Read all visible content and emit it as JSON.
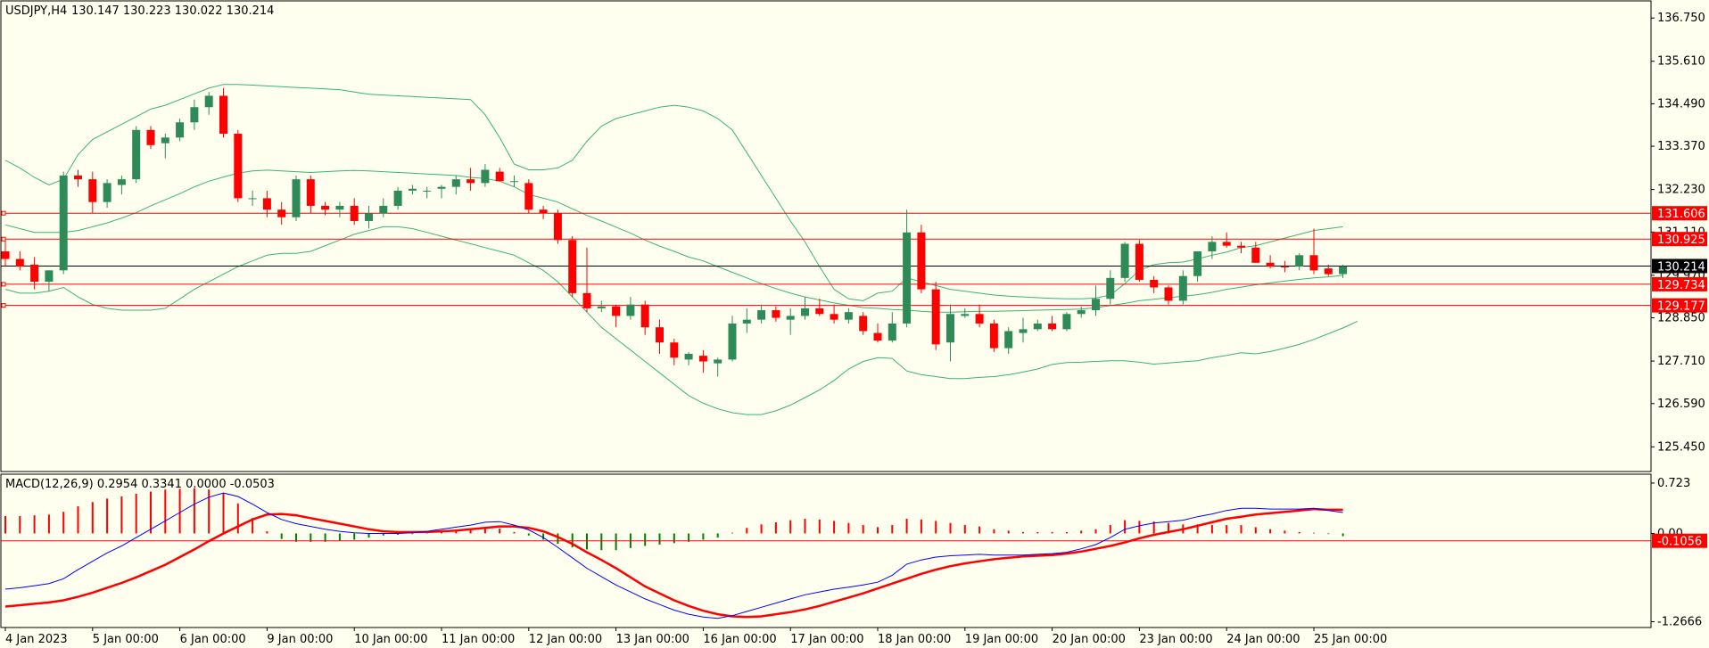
{
  "header": {
    "symbol_tf": "USDJPY,H4",
    "ohlc": "130.147 130.223 130.022 130.214"
  },
  "macd_label": "MACD(12,26,9) 0.2954 0.3341 0.0000 -0.0503",
  "colors": {
    "background": "#fffff0",
    "bull": "#2e8b57",
    "bear": "#ff0000",
    "bands": "#3cb371",
    "level_line": "#ff0000",
    "current_line": "#000000",
    "macd_line": "#0000ff",
    "signal_line": "#ff0000",
    "hist_pos": "#ff0000",
    "hist_neg": "#008000"
  },
  "chart_data": [
    {
      "type": "candlestick",
      "title": "USDJPY,H4",
      "ylim": [
        124.8,
        137.2
      ],
      "yticks": [
        136.75,
        135.61,
        134.49,
        133.37,
        132.23,
        131.11,
        129.97,
        128.85,
        127.71,
        126.59,
        125.45
      ],
      "ytick_labels": [
        "136.750",
        "135.610",
        "134.490",
        "133.370",
        "132.230",
        "131.110",
        "129.970",
        "128.850",
        "127.710",
        "126.590",
        "125.450"
      ],
      "xticks": [
        {
          "i": 0,
          "label": "4 Jan 2023"
        },
        {
          "i": 6,
          "label": "5 Jan 00:00"
        },
        {
          "i": 12,
          "label": "6 Jan 00:00"
        },
        {
          "i": 18,
          "label": "9 Jan 00:00"
        },
        {
          "i": 24,
          "label": "10 Jan 00:00"
        },
        {
          "i": 30,
          "label": "11 Jan 00:00"
        },
        {
          "i": 36,
          "label": "12 Jan 00:00"
        },
        {
          "i": 42,
          "label": "13 Jan 00:00"
        },
        {
          "i": 48,
          "label": "16 Jan 00:00"
        },
        {
          "i": 54,
          "label": "17 Jan 00:00"
        },
        {
          "i": 60,
          "label": "18 Jan 00:00"
        },
        {
          "i": 66,
          "label": "19 Jan 00:00"
        },
        {
          "i": 72,
          "label": "20 Jan 00:00"
        },
        {
          "i": 78,
          "label": "23 Jan 00:00"
        },
        {
          "i": 84,
          "label": "24 Jan 00:00"
        },
        {
          "i": 90,
          "label": "25 Jan 00:00"
        }
      ],
      "levels": [
        131.606,
        130.925,
        129.734,
        129.177
      ],
      "level_labels": [
        "131.606",
        "130.925",
        "129.734",
        "129.177"
      ],
      "current_price": 130.214,
      "current_price_label": "130.214",
      "candles": [
        [
          130.6,
          130.9,
          130.2,
          130.4
        ],
        [
          130.4,
          130.6,
          130.1,
          130.2
        ],
        [
          130.25,
          130.45,
          129.6,
          129.8
        ],
        [
          129.8,
          130.1,
          129.55,
          130.1
        ],
        [
          130.1,
          132.7,
          130.0,
          132.6
        ],
        [
          132.6,
          132.75,
          132.3,
          132.5
        ],
        [
          132.5,
          132.7,
          131.6,
          131.9
        ],
        [
          131.9,
          132.5,
          131.75,
          132.4
        ],
        [
          132.35,
          132.6,
          132.1,
          132.5
        ],
        [
          132.5,
          133.9,
          132.4,
          133.8
        ],
        [
          133.8,
          133.9,
          133.3,
          133.4
        ],
        [
          133.45,
          133.7,
          133.05,
          133.6
        ],
        [
          133.6,
          134.1,
          133.5,
          134.0
        ],
        [
          134.0,
          134.6,
          133.8,
          134.4
        ],
        [
          134.4,
          134.8,
          134.2,
          134.7
        ],
        [
          134.7,
          134.9,
          133.6,
          133.7
        ],
        [
          133.7,
          133.8,
          131.9,
          132.0
        ],
        [
          132.0,
          132.2,
          131.8,
          132.0
        ],
        [
          132.0,
          132.2,
          131.5,
          131.7
        ],
        [
          131.7,
          131.9,
          131.3,
          131.5
        ],
        [
          131.5,
          132.6,
          131.4,
          132.5
        ],
        [
          132.5,
          132.6,
          131.6,
          131.8
        ],
        [
          131.8,
          131.9,
          131.55,
          131.7
        ],
        [
          131.7,
          131.9,
          131.5,
          131.8
        ],
        [
          131.8,
          132.0,
          131.3,
          131.4
        ],
        [
          131.4,
          131.8,
          131.2,
          131.6
        ],
        [
          131.6,
          132.0,
          131.5,
          131.8
        ],
        [
          131.8,
          132.3,
          131.7,
          132.2
        ],
        [
          132.2,
          132.35,
          132.1,
          132.25
        ],
        [
          132.2,
          132.3,
          132.0,
          132.2
        ],
        [
          132.25,
          132.35,
          132.0,
          132.3
        ],
        [
          132.3,
          132.6,
          132.1,
          132.5
        ],
        [
          132.5,
          132.8,
          132.2,
          132.4
        ],
        [
          132.4,
          132.9,
          132.3,
          132.75
        ],
        [
          132.7,
          132.8,
          132.5,
          132.45
        ],
        [
          132.45,
          132.6,
          132.3,
          132.45
        ],
        [
          132.4,
          132.5,
          131.6,
          131.7
        ],
        [
          131.7,
          131.8,
          131.45,
          131.6
        ],
        [
          131.6,
          131.7,
          130.8,
          130.9
        ],
        [
          130.9,
          131.0,
          129.4,
          129.5
        ],
        [
          129.5,
          130.7,
          129.0,
          129.1
        ],
        [
          129.1,
          129.3,
          129.0,
          129.15
        ],
        [
          129.15,
          129.2,
          128.6,
          128.9
        ],
        [
          128.9,
          129.4,
          128.8,
          129.2
        ],
        [
          129.2,
          129.3,
          128.4,
          128.6
        ],
        [
          128.6,
          128.8,
          127.9,
          128.2
        ],
        [
          128.2,
          128.3,
          127.6,
          127.8
        ],
        [
          127.75,
          127.95,
          127.6,
          127.9
        ],
        [
          127.85,
          128.0,
          127.4,
          127.7
        ],
        [
          127.65,
          127.8,
          127.3,
          127.75
        ],
        [
          127.75,
          128.9,
          127.7,
          128.7
        ],
        [
          128.7,
          129.1,
          128.45,
          128.8
        ],
        [
          128.8,
          129.2,
          128.7,
          129.05
        ],
        [
          129.05,
          129.15,
          128.75,
          128.85
        ],
        [
          128.8,
          129.1,
          128.4,
          128.9
        ],
        [
          128.9,
          129.4,
          128.8,
          129.1
        ],
        [
          129.1,
          129.35,
          128.9,
          128.95
        ],
        [
          128.95,
          129.2,
          128.7,
          128.8
        ],
        [
          128.8,
          129.1,
          128.7,
          129.0
        ],
        [
          128.9,
          129.0,
          128.4,
          128.5
        ],
        [
          128.45,
          128.7,
          128.2,
          128.25
        ],
        [
          128.25,
          129.0,
          128.2,
          128.7
        ],
        [
          128.7,
          131.7,
          128.6,
          131.1
        ],
        [
          131.1,
          131.3,
          129.5,
          129.6
        ],
        [
          129.6,
          129.8,
          128.0,
          128.15
        ],
        [
          128.2,
          129.2,
          127.7,
          128.95
        ],
        [
          128.9,
          129.1,
          128.85,
          128.95
        ],
        [
          128.95,
          129.2,
          128.6,
          128.7
        ],
        [
          128.7,
          128.8,
          127.95,
          128.05
        ],
        [
          128.05,
          128.6,
          127.9,
          128.5
        ],
        [
          128.45,
          128.85,
          128.2,
          128.55
        ],
        [
          128.55,
          128.8,
          128.5,
          128.7
        ],
        [
          128.7,
          128.9,
          128.5,
          128.55
        ],
        [
          128.55,
          129.0,
          128.5,
          128.95
        ],
        [
          128.95,
          129.15,
          128.85,
          129.05
        ],
        [
          129.05,
          129.7,
          128.9,
          129.35
        ],
        [
          129.35,
          130.1,
          129.2,
          129.9
        ],
        [
          129.9,
          130.85,
          129.8,
          130.8
        ],
        [
          130.8,
          130.9,
          129.8,
          129.85
        ],
        [
          129.85,
          129.95,
          129.5,
          129.65
        ],
        [
          129.65,
          129.7,
          129.2,
          129.3
        ],
        [
          129.3,
          130.1,
          129.2,
          129.95
        ],
        [
          129.95,
          130.5,
          129.8,
          130.6
        ],
        [
          130.6,
          131.0,
          130.4,
          130.85
        ],
        [
          130.85,
          131.1,
          130.7,
          130.75
        ],
        [
          130.75,
          130.85,
          130.55,
          130.7
        ],
        [
          130.7,
          130.85,
          130.3,
          130.3
        ],
        [
          130.3,
          130.5,
          130.15,
          130.2
        ],
        [
          130.2,
          130.35,
          130.05,
          130.18
        ],
        [
          130.2,
          130.55,
          130.1,
          130.5
        ],
        [
          130.5,
          131.2,
          130.0,
          130.1
        ],
        [
          130.15,
          130.25,
          129.95,
          130.0
        ],
        [
          130.0,
          130.25,
          129.9,
          130.21
        ]
      ],
      "bands_upper": [
        133.0,
        132.8,
        132.55,
        132.35,
        132.5,
        133.15,
        133.55,
        133.75,
        133.95,
        134.15,
        134.35,
        134.45,
        134.6,
        134.75,
        134.9,
        135.0,
        135.0,
        134.98,
        134.96,
        134.94,
        134.92,
        134.9,
        134.88,
        134.86,
        134.8,
        134.74,
        134.72,
        134.7,
        134.68,
        134.66,
        134.64,
        134.62,
        134.6,
        134.2,
        133.6,
        132.9,
        132.75,
        132.75,
        132.8,
        133.0,
        133.5,
        133.9,
        134.1,
        134.2,
        134.3,
        134.4,
        134.45,
        134.4,
        134.3,
        134.1,
        133.8,
        133.2,
        132.6,
        132.0,
        131.4,
        130.85,
        130.2,
        129.6,
        129.35,
        129.3,
        129.5,
        129.55,
        129.9,
        129.8,
        129.7,
        129.6,
        129.55,
        129.5,
        129.45,
        129.42,
        129.4,
        129.38,
        129.36,
        129.35,
        129.35,
        129.37,
        129.45,
        129.75,
        130.1,
        130.25,
        130.3,
        130.32,
        130.4,
        130.5,
        130.58,
        130.7,
        130.75,
        130.85,
        130.95,
        131.05,
        131.15,
        131.2,
        131.25
      ],
      "bands_middle": [
        131.3,
        131.2,
        131.1,
        131.1,
        131.1,
        131.15,
        131.25,
        131.35,
        131.48,
        131.62,
        131.8,
        131.96,
        132.12,
        132.3,
        132.45,
        132.56,
        132.66,
        132.72,
        132.74,
        132.72,
        132.7,
        132.68,
        132.7,
        132.72,
        132.73,
        132.72,
        132.7,
        132.68,
        132.66,
        132.64,
        132.62,
        132.6,
        132.55,
        132.52,
        132.45,
        132.3,
        132.1,
        132.0,
        131.9,
        131.72,
        131.55,
        131.4,
        131.24,
        131.08,
        130.9,
        130.74,
        130.6,
        130.45,
        130.35,
        130.2,
        130.05,
        129.9,
        129.75,
        129.62,
        129.5,
        129.4,
        129.32,
        129.24,
        129.18,
        129.12,
        129.1,
        129.07,
        129.05,
        129.02,
        129.0,
        129.0,
        129.01,
        129.02,
        129.02,
        129.03,
        129.04,
        129.05,
        129.06,
        129.07,
        129.08,
        129.12,
        129.17,
        129.23,
        129.3,
        129.34,
        129.38,
        129.42,
        129.46,
        129.52,
        129.6,
        129.66,
        129.72,
        129.77,
        129.82,
        129.86,
        129.9,
        129.93,
        129.97
      ],
      "bands_lower": [
        129.6,
        129.5,
        129.5,
        129.55,
        129.65,
        129.4,
        129.2,
        129.1,
        129.05,
        129.05,
        129.05,
        129.1,
        129.35,
        129.6,
        129.8,
        130.0,
        130.2,
        130.35,
        130.5,
        130.55,
        130.55,
        130.6,
        130.75,
        130.9,
        131.05,
        131.15,
        131.25,
        131.25,
        131.2,
        131.1,
        131.0,
        130.9,
        130.8,
        130.7,
        130.6,
        130.5,
        130.3,
        130.1,
        129.8,
        129.4,
        129.0,
        128.6,
        128.3,
        128.0,
        127.7,
        127.4,
        127.1,
        126.8,
        126.6,
        126.45,
        126.35,
        126.3,
        126.3,
        126.4,
        126.55,
        126.75,
        126.95,
        127.2,
        127.5,
        127.7,
        127.8,
        127.78,
        127.45,
        127.35,
        127.3,
        127.25,
        127.25,
        127.28,
        127.3,
        127.35,
        127.42,
        127.5,
        127.62,
        127.67,
        127.68,
        127.7,
        127.72,
        127.72,
        127.68,
        127.63,
        127.66,
        127.69,
        127.72,
        127.8,
        127.86,
        127.93,
        127.9,
        127.96,
        128.05,
        128.15,
        128.28,
        128.43,
        128.58,
        128.76
      ]
    },
    {
      "type": "macd",
      "title": "MACD(12,26,9)",
      "ylim": [
        -1.35,
        0.85
      ],
      "yticks": [
        0.723,
        0.0,
        -1.2666
      ],
      "ytick_labels": [
        "0.723",
        "0.00",
        "-1.2666"
      ],
      "level": -0.1056,
      "level_label": "-0.1056",
      "macd": [
        -0.8,
        -0.78,
        -0.75,
        -0.72,
        -0.65,
        -0.52,
        -0.4,
        -0.28,
        -0.18,
        -0.06,
        0.06,
        0.18,
        0.3,
        0.42,
        0.52,
        0.58,
        0.53,
        0.42,
        0.3,
        0.2,
        0.14,
        0.1,
        0.06,
        0.03,
        0.01,
        0.0,
        0.0,
        0.0,
        0.01,
        0.03,
        0.06,
        0.09,
        0.12,
        0.16,
        0.17,
        0.12,
        0.05,
        -0.06,
        -0.2,
        -0.35,
        -0.5,
        -0.62,
        -0.74,
        -0.84,
        -0.94,
        -1.02,
        -1.1,
        -1.16,
        -1.2,
        -1.22,
        -1.18,
        -1.12,
        -1.06,
        -1.0,
        -0.94,
        -0.88,
        -0.84,
        -0.8,
        -0.77,
        -0.74,
        -0.7,
        -0.6,
        -0.44,
        -0.38,
        -0.34,
        -0.32,
        -0.31,
        -0.3,
        -0.31,
        -0.31,
        -0.31,
        -0.3,
        -0.29,
        -0.27,
        -0.22,
        -0.16,
        -0.06,
        0.06,
        0.11,
        0.15,
        0.17,
        0.19,
        0.24,
        0.28,
        0.33,
        0.36,
        0.36,
        0.35,
        0.35,
        0.35,
        0.36,
        0.33,
        0.3
      ],
      "signal": [
        -1.05,
        -1.03,
        -1.01,
        -0.99,
        -0.96,
        -0.91,
        -0.85,
        -0.78,
        -0.71,
        -0.63,
        -0.54,
        -0.45,
        -0.34,
        -0.23,
        -0.11,
        0.0,
        0.1,
        0.2,
        0.27,
        0.28,
        0.26,
        0.22,
        0.18,
        0.14,
        0.1,
        0.06,
        0.03,
        0.02,
        0.02,
        0.02,
        0.03,
        0.04,
        0.06,
        0.08,
        0.1,
        0.1,
        0.08,
        0.03,
        -0.05,
        -0.15,
        -0.27,
        -0.38,
        -0.5,
        -0.63,
        -0.76,
        -0.86,
        -0.96,
        -1.04,
        -1.11,
        -1.16,
        -1.19,
        -1.2,
        -1.19,
        -1.16,
        -1.13,
        -1.09,
        -1.04,
        -0.98,
        -0.92,
        -0.86,
        -0.79,
        -0.72,
        -0.65,
        -0.58,
        -0.52,
        -0.47,
        -0.43,
        -0.4,
        -0.37,
        -0.35,
        -0.33,
        -0.32,
        -0.31,
        -0.29,
        -0.26,
        -0.22,
        -0.18,
        -0.13,
        -0.07,
        -0.02,
        0.02,
        0.06,
        0.11,
        0.16,
        0.21,
        0.24,
        0.27,
        0.29,
        0.31,
        0.33,
        0.35,
        0.34,
        0.34
      ],
      "histogram": [
        0.25,
        0.25,
        0.26,
        0.27,
        0.31,
        0.39,
        0.45,
        0.5,
        0.53,
        0.57,
        0.6,
        0.63,
        0.64,
        0.65,
        0.63,
        0.58,
        0.43,
        0.22,
        0.03,
        -0.08,
        -0.12,
        -0.12,
        -0.12,
        -0.11,
        -0.09,
        -0.06,
        -0.03,
        -0.02,
        -0.01,
        0.01,
        0.03,
        0.05,
        0.06,
        0.08,
        0.07,
        0.02,
        -0.03,
        -0.09,
        -0.15,
        -0.2,
        -0.23,
        -0.24,
        -0.24,
        -0.21,
        -0.18,
        -0.16,
        -0.14,
        -0.12,
        -0.09,
        -0.06,
        0.01,
        0.08,
        0.13,
        0.16,
        0.19,
        0.21,
        0.2,
        0.18,
        0.15,
        0.12,
        0.09,
        0.12,
        0.21,
        0.2,
        0.18,
        0.15,
        0.12,
        0.1,
        0.06,
        0.04,
        0.02,
        0.02,
        0.02,
        0.02,
        0.04,
        0.06,
        0.12,
        0.19,
        0.18,
        0.17,
        0.15,
        0.13,
        0.13,
        0.12,
        0.12,
        0.12,
        0.09,
        0.06,
        0.04,
        0.02,
        0.01,
        -0.01,
        -0.04
      ]
    }
  ]
}
